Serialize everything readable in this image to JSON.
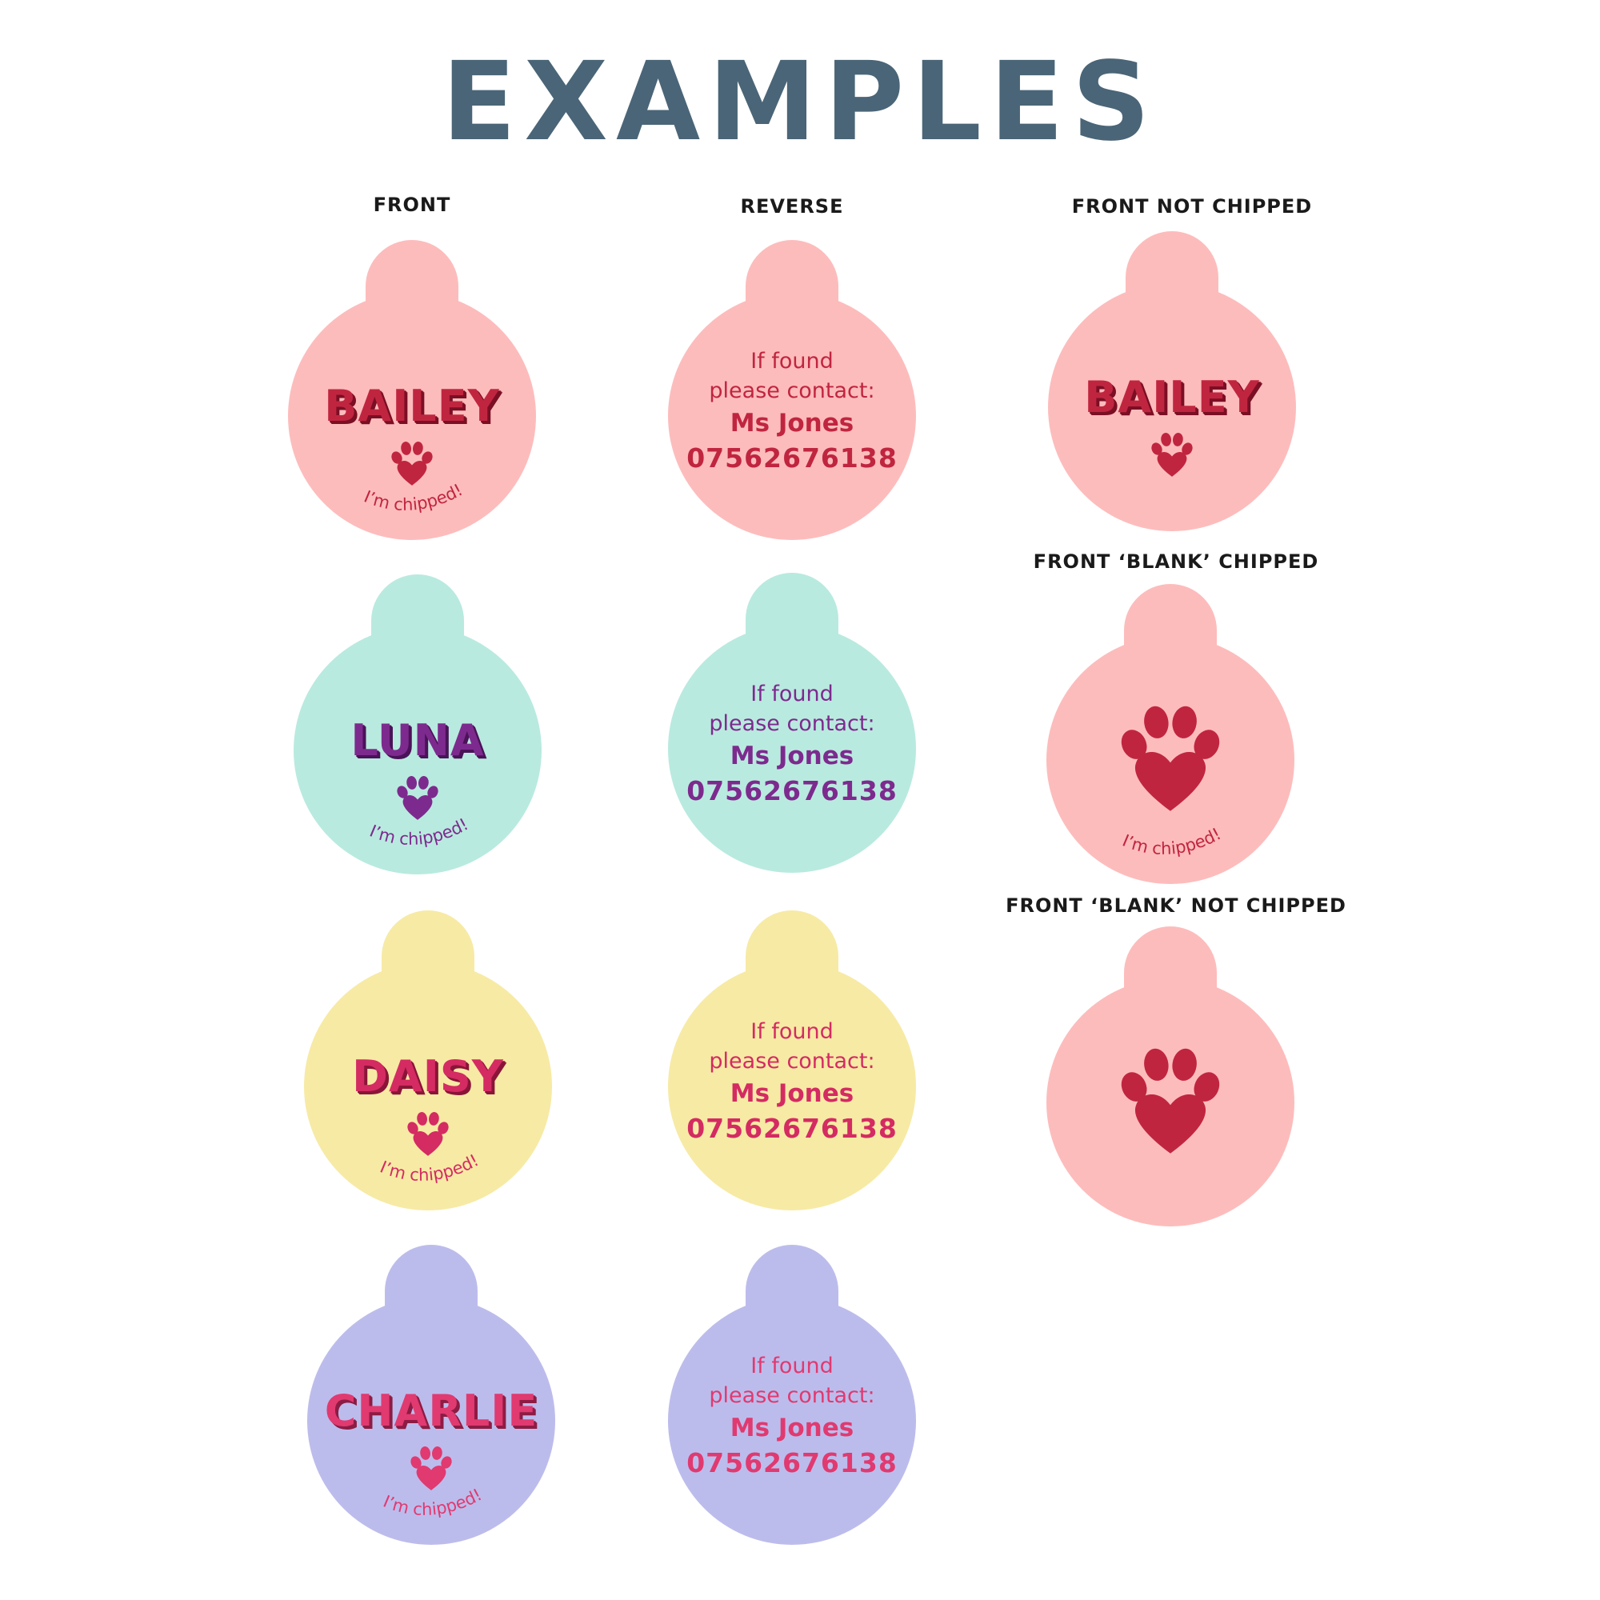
{
  "title": "EXAMPLES",
  "labels": {
    "front": "FRONT",
    "reverse": "REVERSE",
    "front_not_chipped": "FRONT NOT CHIPPED",
    "front_blank_chipped": "FRONT ‘BLANK’ CHIPPED",
    "front_blank_not_chipped": "FRONT ‘BLANK’ NOT CHIPPED"
  },
  "chipped_text": "I’m chipped!",
  "colors": {
    "title": "#4a6577",
    "label": "#1a1a1a",
    "pink_bg": "#fdbcbc",
    "mint_bg": "#b9eadf",
    "yellow_bg": "#f7eaa5",
    "lavender_bg": "#bcbcec",
    "crimson": "#c0253f",
    "purple": "#7d2a8e",
    "rose": "#e03a70",
    "dark_crimson": "#7a0f24"
  },
  "front_tags": [
    {
      "name": "BAILEY",
      "bg": "#fdbcbc",
      "text_color": "#c0253f",
      "shadow": "#7a0f24",
      "icon": "paw-heart-icon"
    },
    {
      "name": "LUNA",
      "bg": "#b9eadf",
      "text_color": "#7d2a8e",
      "shadow": "#4a1258",
      "icon": "paw-heart-icon"
    },
    {
      "name": "DAISY",
      "bg": "#f7eaa5",
      "text_color": "#d42b62",
      "shadow": "#8a1538",
      "icon": "paw-heart-icon"
    },
    {
      "name": "CHARLIE",
      "bg": "#bcbcec",
      "text_color": "#e03a70",
      "shadow": "#8c1c44",
      "icon": "paw-heart-icon"
    }
  ],
  "reverse_tags": [
    {
      "line1": "If found",
      "line2": "please contact:",
      "line3": "Ms Jones",
      "line4": "07562676138",
      "bg": "#fdbcbc",
      "text_color": "#c0253f"
    },
    {
      "line1": "If found",
      "line2": "please contact:",
      "line3": "Ms Jones",
      "line4": "07562676138",
      "bg": "#b9eadf",
      "text_color": "#7d2a8e"
    },
    {
      "line1": "If found",
      "line2": "please contact:",
      "line3": "Ms Jones",
      "line4": "07562676138",
      "bg": "#f7eaa5",
      "text_color": "#d42b62"
    },
    {
      "line1": "If found",
      "line2": "please contact:",
      "line3": "Ms Jones",
      "line4": "07562676138",
      "bg": "#bcbcec",
      "text_color": "#e03a70"
    }
  ],
  "front_not_chipped": {
    "name": "BAILEY",
    "bg": "#fdbcbc",
    "text_color": "#c0253f",
    "shadow": "#7a0f24",
    "icon": "paw-heart-icon"
  },
  "front_blank_chipped": {
    "bg": "#fdbcbc",
    "color": "#c0253f",
    "icon": "paw-heart-icon"
  },
  "front_blank_not_chipped": {
    "bg": "#fdbcbc",
    "color": "#c0253f",
    "icon": "paw-heart-icon"
  }
}
